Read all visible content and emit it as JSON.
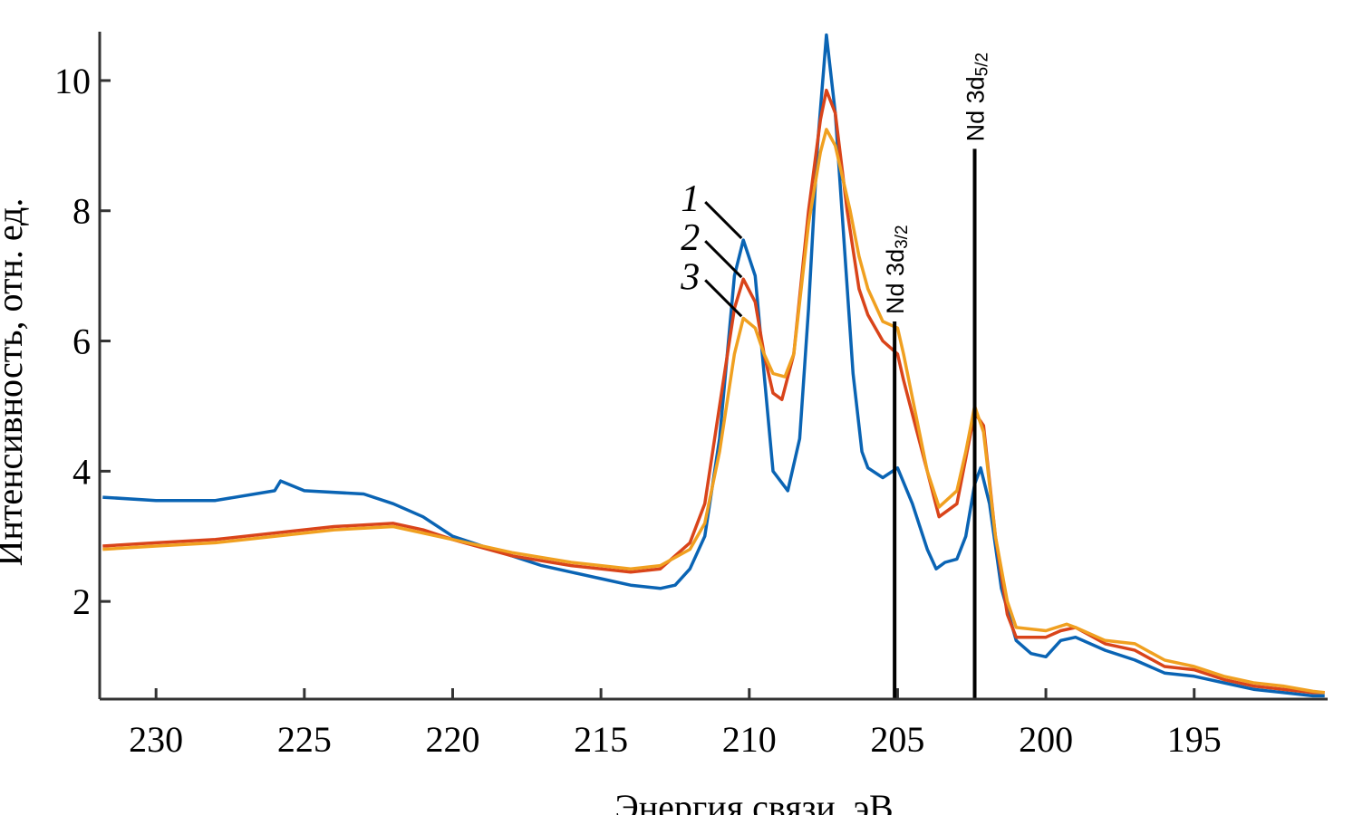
{
  "chart_data": {
    "type": "line",
    "xlabel": "Энергия связи, эВ",
    "ylabel": "Интенсивность, отн. ед.",
    "xlim": [
      231.9,
      190.5
    ],
    "ylim": [
      0.5,
      10.75
    ],
    "x_reversed": true,
    "xticks": [
      230,
      225,
      220,
      215,
      210,
      205,
      200,
      195
    ],
    "yticks": [
      2,
      4,
      6,
      8,
      10
    ],
    "grid": false,
    "series": [
      {
        "name": "1",
        "color": "#0a64b4",
        "points": [
          [
            231.8,
            3.6
          ],
          [
            230,
            3.55
          ],
          [
            228,
            3.55
          ],
          [
            226,
            3.7
          ],
          [
            225.8,
            3.85
          ],
          [
            225,
            3.7
          ],
          [
            223,
            3.65
          ],
          [
            222,
            3.5
          ],
          [
            221,
            3.3
          ],
          [
            220,
            3.0
          ],
          [
            219,
            2.85
          ],
          [
            218,
            2.7
          ],
          [
            217,
            2.55
          ],
          [
            216,
            2.45
          ],
          [
            215,
            2.35
          ],
          [
            214,
            2.25
          ],
          [
            213,
            2.2
          ],
          [
            212.5,
            2.25
          ],
          [
            212,
            2.5
          ],
          [
            211.5,
            3.0
          ],
          [
            211,
            4.5
          ],
          [
            210.5,
            7.0
          ],
          [
            210.2,
            7.55
          ],
          [
            209.8,
            7.0
          ],
          [
            209.5,
            5.5
          ],
          [
            209.2,
            4.0
          ],
          [
            208.7,
            3.7
          ],
          [
            208.3,
            4.5
          ],
          [
            208,
            6.5
          ],
          [
            207.7,
            9.0
          ],
          [
            207.4,
            10.7
          ],
          [
            207.1,
            9.5
          ],
          [
            206.8,
            7.5
          ],
          [
            206.5,
            5.5
          ],
          [
            206.2,
            4.3
          ],
          [
            206,
            4.05
          ],
          [
            205.5,
            3.9
          ],
          [
            205,
            4.05
          ],
          [
            204.5,
            3.5
          ],
          [
            204,
            2.8
          ],
          [
            203.7,
            2.5
          ],
          [
            203.4,
            2.6
          ],
          [
            203,
            2.65
          ],
          [
            202.7,
            3.0
          ],
          [
            202.4,
            3.8
          ],
          [
            202.2,
            4.05
          ],
          [
            201.9,
            3.5
          ],
          [
            201.5,
            2.2
          ],
          [
            201,
            1.4
          ],
          [
            200.5,
            1.2
          ],
          [
            200,
            1.15
          ],
          [
            199.5,
            1.4
          ],
          [
            199,
            1.45
          ],
          [
            198,
            1.25
          ],
          [
            197,
            1.1
          ],
          [
            196,
            0.9
          ],
          [
            195,
            0.85
          ],
          [
            194,
            0.75
          ],
          [
            193,
            0.65
          ],
          [
            192,
            0.6
          ],
          [
            191,
            0.55
          ],
          [
            190.6,
            0.55
          ]
        ]
      },
      {
        "name": "2",
        "color": "#d9441a",
        "points": [
          [
            231.8,
            2.85
          ],
          [
            230,
            2.9
          ],
          [
            228,
            2.95
          ],
          [
            226,
            3.05
          ],
          [
            224,
            3.15
          ],
          [
            222,
            3.2
          ],
          [
            221,
            3.1
          ],
          [
            220,
            2.95
          ],
          [
            218,
            2.7
          ],
          [
            216,
            2.55
          ],
          [
            214,
            2.45
          ],
          [
            213,
            2.5
          ],
          [
            212,
            2.9
          ],
          [
            211.5,
            3.5
          ],
          [
            211,
            5.0
          ],
          [
            210.5,
            6.5
          ],
          [
            210.2,
            6.95
          ],
          [
            209.8,
            6.6
          ],
          [
            209.5,
            5.8
          ],
          [
            209.2,
            5.2
          ],
          [
            208.9,
            5.1
          ],
          [
            208.5,
            5.8
          ],
          [
            208,
            8.0
          ],
          [
            207.6,
            9.4
          ],
          [
            207.4,
            9.85
          ],
          [
            207.1,
            9.5
          ],
          [
            206.7,
            8.0
          ],
          [
            206.3,
            6.8
          ],
          [
            206,
            6.4
          ],
          [
            205.5,
            6.0
          ],
          [
            205,
            5.8
          ],
          [
            204.8,
            5.4
          ],
          [
            204.4,
            4.7
          ],
          [
            204,
            4.0
          ],
          [
            203.6,
            3.3
          ],
          [
            203,
            3.5
          ],
          [
            202.7,
            4.2
          ],
          [
            202.4,
            4.9
          ],
          [
            202.1,
            4.7
          ],
          [
            201.7,
            3.0
          ],
          [
            201.3,
            1.8
          ],
          [
            201,
            1.45
          ],
          [
            200,
            1.45
          ],
          [
            199.5,
            1.55
          ],
          [
            199,
            1.6
          ],
          [
            198,
            1.35
          ],
          [
            197,
            1.25
          ],
          [
            196,
            1.0
          ],
          [
            195,
            0.95
          ],
          [
            194,
            0.8
          ],
          [
            193,
            0.7
          ],
          [
            192,
            0.65
          ],
          [
            191,
            0.6
          ],
          [
            190.6,
            0.6
          ]
        ]
      },
      {
        "name": "3",
        "color": "#f0a020",
        "points": [
          [
            231.8,
            2.8
          ],
          [
            230,
            2.85
          ],
          [
            228,
            2.9
          ],
          [
            226,
            3.0
          ],
          [
            224,
            3.1
          ],
          [
            222,
            3.15
          ],
          [
            220,
            2.95
          ],
          [
            218,
            2.75
          ],
          [
            216,
            2.6
          ],
          [
            214,
            2.5
          ],
          [
            213,
            2.55
          ],
          [
            212,
            2.8
          ],
          [
            211.5,
            3.2
          ],
          [
            211,
            4.3
          ],
          [
            210.5,
            5.8
          ],
          [
            210.2,
            6.35
          ],
          [
            209.8,
            6.2
          ],
          [
            209.5,
            5.8
          ],
          [
            209.2,
            5.5
          ],
          [
            208.8,
            5.45
          ],
          [
            208.5,
            5.8
          ],
          [
            208,
            7.8
          ],
          [
            207.6,
            8.9
          ],
          [
            207.4,
            9.25
          ],
          [
            207.1,
            9.0
          ],
          [
            206.6,
            8.0
          ],
          [
            206.3,
            7.3
          ],
          [
            206,
            6.8
          ],
          [
            205.5,
            6.3
          ],
          [
            205,
            6.2
          ],
          [
            204.8,
            5.8
          ],
          [
            204.4,
            4.9
          ],
          [
            204,
            4.0
          ],
          [
            203.6,
            3.45
          ],
          [
            203,
            3.7
          ],
          [
            202.7,
            4.3
          ],
          [
            202.4,
            5.0
          ],
          [
            202.1,
            4.6
          ],
          [
            201.7,
            3.0
          ],
          [
            201.3,
            2.0
          ],
          [
            201,
            1.6
          ],
          [
            200,
            1.55
          ],
          [
            199.3,
            1.65
          ],
          [
            199,
            1.6
          ],
          [
            198,
            1.4
          ],
          [
            197,
            1.35
          ],
          [
            196,
            1.1
          ],
          [
            195,
            1.0
          ],
          [
            194,
            0.85
          ],
          [
            193,
            0.75
          ],
          [
            192,
            0.7
          ],
          [
            191,
            0.62
          ],
          [
            190.6,
            0.6
          ]
        ]
      }
    ],
    "annotations": [
      {
        "label": "Nd 3d",
        "sub": "3/2",
        "x": 205.1,
        "y_top": 6.3
      },
      {
        "label": "Nd 3d",
        "sub": "5/2",
        "x": 202.4,
        "y_top": 8.95
      }
    ],
    "curve_labels": [
      {
        "text": "1",
        "at": [
          210.2,
          7.55
        ]
      },
      {
        "text": "2",
        "at": [
          210.2,
          6.95
        ]
      },
      {
        "text": "3",
        "at": [
          210.2,
          6.35
        ]
      }
    ]
  }
}
